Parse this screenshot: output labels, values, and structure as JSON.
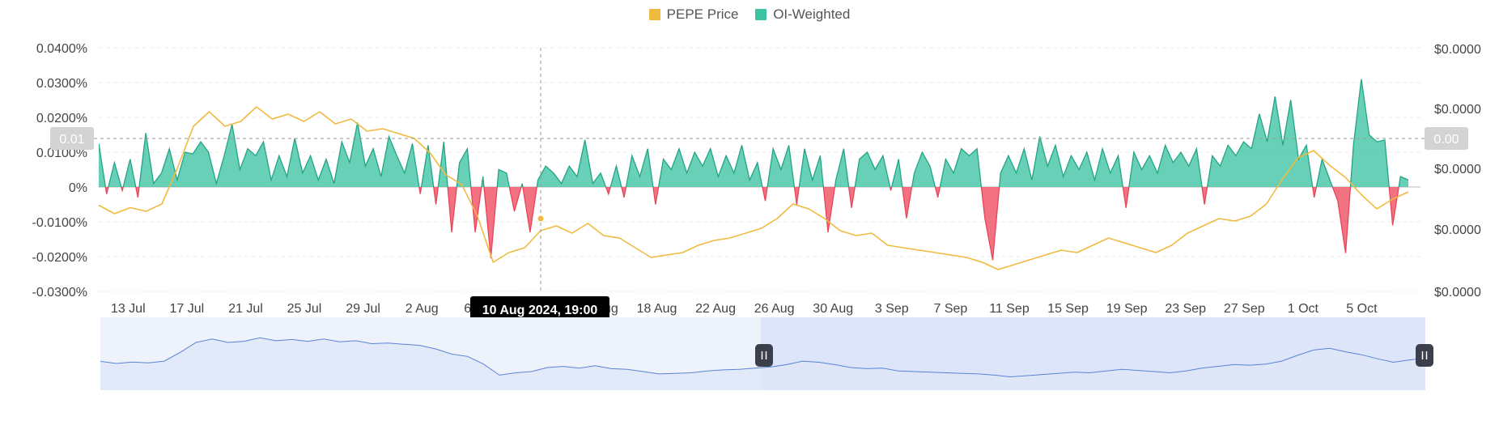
{
  "legend": {
    "price_label": "PEPE Price",
    "oi_label": "OI-Weighted"
  },
  "colors": {
    "price": "#F0BA40",
    "oi_positive": "#3CC3A3",
    "oi_negative": "#F0596B",
    "crosshair": "#9a9a9a",
    "navigator_line": "#5b84d6",
    "navigator_fill": "#dfe6f7",
    "navigator_selected": "#c7d4f5"
  },
  "crosshair": {
    "tooltip": "10 Aug 2024, 19:00",
    "left_axis_badge": "0.01",
    "right_axis_badge": "0.00"
  },
  "chart_data": {
    "type": "area",
    "x_ticks": [
      "13 Jul",
      "17 Jul",
      "21 Jul",
      "25 Jul",
      "29 Jul",
      "2 Aug",
      "6 Aug",
      "10 Aug",
      "14 Aug",
      "18 Aug",
      "22 Aug",
      "26 Aug",
      "30 Aug",
      "3 Sep",
      "7 Sep",
      "11 Sep",
      "15 Sep",
      "19 Sep",
      "23 Sep",
      "27 Sep",
      "1 Oct",
      "5 Oct"
    ],
    "y_left": {
      "ticks": [
        "0.0400%",
        "0.0300%",
        "0.0200%",
        "0.0100%",
        "0%",
        "-0.0100%",
        "-0.0200%",
        "-0.0300%"
      ],
      "range": [
        -0.03,
        0.04
      ],
      "unit": "%"
    },
    "y_right": {
      "ticks": [
        "$0.0000",
        "$0.0000",
        "$0.0000",
        "$0.0000",
        "$0.0000"
      ]
    },
    "x_range": {
      "start": "2024-07-11",
      "end": "2024-10-09"
    },
    "series": [
      {
        "name": "OI-Weighted",
        "kind": "funding_rate_area",
        "points": [
          [
            "2024-07-11",
            0.0125
          ],
          [
            "2024-07-11T12:00",
            -0.002
          ],
          [
            "2024-07-12",
            0.007
          ],
          [
            "2024-07-12T12:00",
            -0.001
          ],
          [
            "2024-07-13",
            0.008
          ],
          [
            "2024-07-13T12:00",
            -0.003
          ],
          [
            "2024-07-14",
            0.0155
          ],
          [
            "2024-07-14T12:00",
            0.001
          ],
          [
            "2024-07-15",
            0.004
          ],
          [
            "2024-07-15T12:00",
            0.011
          ],
          [
            "2024-07-16",
            0.002
          ],
          [
            "2024-07-16T12:00",
            0.01
          ],
          [
            "2024-07-17",
            0.0095
          ],
          [
            "2024-07-18",
            0.013
          ],
          [
            "2024-07-18T12:00",
            0.01
          ],
          [
            "2024-07-19",
            0.001
          ],
          [
            "2024-07-19T12:00",
            0.009
          ],
          [
            "2024-07-20",
            0.018
          ],
          [
            "2024-07-20T12:00",
            0.005
          ],
          [
            "2024-07-21",
            0.011
          ],
          [
            "2024-07-21T12:00",
            0.009
          ],
          [
            "2024-07-22",
            0.013
          ],
          [
            "2024-07-22T12:00",
            0.002
          ],
          [
            "2024-07-23",
            0.009
          ],
          [
            "2024-07-23T12:00",
            0.003
          ],
          [
            "2024-07-24",
            0.014
          ],
          [
            "2024-07-24T12:00",
            0.004
          ],
          [
            "2024-07-25",
            0.009
          ],
          [
            "2024-07-25T12:00",
            0.002
          ],
          [
            "2024-07-26",
            0.008
          ],
          [
            "2024-07-26T12:00",
            0.001
          ],
          [
            "2024-07-27",
            0.013
          ],
          [
            "2024-07-27T12:00",
            0.007
          ],
          [
            "2024-07-28",
            0.0185
          ],
          [
            "2024-07-28T12:00",
            0.006
          ],
          [
            "2024-07-29",
            0.011
          ],
          [
            "2024-07-29T12:00",
            0.003
          ],
          [
            "2024-07-30",
            0.0145
          ],
          [
            "2024-07-30T12:00",
            0.009
          ],
          [
            "2024-07-31",
            0.004
          ],
          [
            "2024-07-31T12:00",
            0.0125
          ],
          [
            "2024-08-01",
            -0.002
          ],
          [
            "2024-08-01T12:00",
            0.012
          ],
          [
            "2024-08-02",
            -0.005
          ],
          [
            "2024-08-02T12:00",
            0.013
          ],
          [
            "2024-08-02T18:00",
            -0.013
          ],
          [
            "2024-08-03",
            0.007
          ],
          [
            "2024-08-03T12:00",
            0.011
          ],
          [
            "2024-08-04",
            -0.013
          ],
          [
            "2024-08-04T12:00",
            0.003
          ],
          [
            "2024-08-05",
            -0.0205
          ],
          [
            "2024-08-05T12:00",
            0.005
          ],
          [
            "2024-08-06",
            0.004
          ],
          [
            "2024-08-06T12:00",
            -0.007
          ],
          [
            "2024-08-07",
            0.001
          ],
          [
            "2024-08-07T12:00",
            -0.013
          ],
          [
            "2024-08-08",
            0.002
          ],
          [
            "2024-08-08T12:00",
            0.006
          ],
          [
            "2024-08-09",
            0.004
          ],
          [
            "2024-08-09T12:00",
            0.001
          ],
          [
            "2024-08-10",
            0.006
          ],
          [
            "2024-08-10T12:00",
            0.003
          ],
          [
            "2024-08-11",
            0.0135
          ],
          [
            "2024-08-11T12:00",
            0.001
          ],
          [
            "2024-08-12",
            0.004
          ],
          [
            "2024-08-12T12:00",
            -0.002
          ],
          [
            "2024-08-13",
            0.006
          ],
          [
            "2024-08-13T12:00",
            -0.003
          ],
          [
            "2024-08-14",
            0.009
          ],
          [
            "2024-08-14T12:00",
            0.003
          ],
          [
            "2024-08-15",
            0.011
          ],
          [
            "2024-08-15T12:00",
            -0.005
          ],
          [
            "2024-08-16",
            0.008
          ],
          [
            "2024-08-16T12:00",
            0.005
          ],
          [
            "2024-08-17",
            0.011
          ],
          [
            "2024-08-17T12:00",
            0.004
          ],
          [
            "2024-08-18",
            0.01
          ],
          [
            "2024-08-18T12:00",
            0.006
          ],
          [
            "2024-08-19",
            0.011
          ],
          [
            "2024-08-19T12:00",
            0.003
          ],
          [
            "2024-08-20",
            0.009
          ],
          [
            "2024-08-20T12:00",
            0.004
          ],
          [
            "2024-08-21",
            0.012
          ],
          [
            "2024-08-21T12:00",
            0.002
          ],
          [
            "2024-08-22",
            0.007
          ],
          [
            "2024-08-22T12:00",
            -0.004
          ],
          [
            "2024-08-23",
            0.011
          ],
          [
            "2024-08-23T12:00",
            0.005
          ],
          [
            "2024-08-24",
            0.012
          ],
          [
            "2024-08-24T12:00",
            -0.005
          ],
          [
            "2024-08-25",
            0.011
          ],
          [
            "2024-08-25T12:00",
            0.002
          ],
          [
            "2024-08-26",
            0.009
          ],
          [
            "2024-08-26T12:00",
            -0.013
          ],
          [
            "2024-08-27",
            0.002
          ],
          [
            "2024-08-27T12:00",
            0.011
          ],
          [
            "2024-08-28",
            -0.006
          ],
          [
            "2024-08-28T12:00",
            0.008
          ],
          [
            "2024-08-29",
            0.01
          ],
          [
            "2024-08-29T12:00",
            0.005
          ],
          [
            "2024-08-30",
            0.009
          ],
          [
            "2024-08-30T12:00",
            -0.001
          ],
          [
            "2024-08-31",
            0.008
          ],
          [
            "2024-08-31T12:00",
            -0.009
          ],
          [
            "2024-09-01",
            0.004
          ],
          [
            "2024-09-01T12:00",
            0.01
          ],
          [
            "2024-09-02",
            0.006
          ],
          [
            "2024-09-02T12:00",
            -0.003
          ],
          [
            "2024-09-03",
            0.008
          ],
          [
            "2024-09-03T12:00",
            0.004
          ],
          [
            "2024-09-04",
            0.011
          ],
          [
            "2024-09-04T12:00",
            0.009
          ],
          [
            "2024-09-05",
            0.011
          ],
          [
            "2024-09-05T12:00",
            -0.009
          ],
          [
            "2024-09-06",
            -0.021
          ],
          [
            "2024-09-06T12:00",
            0.004
          ],
          [
            "2024-09-07",
            0.009
          ],
          [
            "2024-09-07T12:00",
            0.004
          ],
          [
            "2024-09-08",
            0.011
          ],
          [
            "2024-09-08T12:00",
            0.002
          ],
          [
            "2024-09-09",
            0.0145
          ],
          [
            "2024-09-09T12:00",
            0.006
          ],
          [
            "2024-09-10",
            0.012
          ],
          [
            "2024-09-10T12:00",
            0.003
          ],
          [
            "2024-09-11",
            0.009
          ],
          [
            "2024-09-11T12:00",
            0.005
          ],
          [
            "2024-09-12",
            0.01
          ],
          [
            "2024-09-12T12:00",
            0.002
          ],
          [
            "2024-09-13",
            0.011
          ],
          [
            "2024-09-13T12:00",
            0.004
          ],
          [
            "2024-09-14",
            0.009
          ],
          [
            "2024-09-14T12:00",
            -0.006
          ],
          [
            "2024-09-15",
            0.01
          ],
          [
            "2024-09-15T12:00",
            0.005
          ],
          [
            "2024-09-16",
            0.009
          ],
          [
            "2024-09-16T12:00",
            0.004
          ],
          [
            "2024-09-17",
            0.012
          ],
          [
            "2024-09-17T12:00",
            0.007
          ],
          [
            "2024-09-18",
            0.01
          ],
          [
            "2024-09-18T12:00",
            0.006
          ],
          [
            "2024-09-19",
            0.011
          ],
          [
            "2024-09-19T12:00",
            -0.005
          ],
          [
            "2024-09-20",
            0.009
          ],
          [
            "2024-09-20T12:00",
            0.006
          ],
          [
            "2024-09-21",
            0.012
          ],
          [
            "2024-09-21T12:00",
            0.009
          ],
          [
            "2024-09-22",
            0.013
          ],
          [
            "2024-09-22T12:00",
            0.011
          ],
          [
            "2024-09-23",
            0.021
          ],
          [
            "2024-09-23T12:00",
            0.013
          ],
          [
            "2024-09-24",
            0.026
          ],
          [
            "2024-09-24T12:00",
            0.012
          ],
          [
            "2024-09-25",
            0.025
          ],
          [
            "2024-09-25T12:00",
            0.008
          ],
          [
            "2024-09-26",
            0.012
          ],
          [
            "2024-09-26T12:00",
            -0.003
          ],
          [
            "2024-09-27",
            0.008
          ],
          [
            "2024-09-27T12:00",
            0.002
          ],
          [
            "2024-09-28",
            -0.004
          ],
          [
            "2024-09-28T12:00",
            -0.019
          ],
          [
            "2024-09-29",
            0.012
          ],
          [
            "2024-09-29T12:00",
            0.031
          ],
          [
            "2024-09-30",
            0.015
          ],
          [
            "2024-09-30T12:00",
            0.013
          ],
          [
            "2024-10-01",
            0.0135
          ],
          [
            "2024-10-01T12:00",
            -0.011
          ],
          [
            "2024-10-02",
            0.003
          ],
          [
            "2024-10-02T12:00",
            0.002
          ]
        ]
      },
      {
        "name": "PEPE Price",
        "kind": "price_line",
        "note_scale": "relative 0-1 of right axis",
        "points": [
          [
            "2024-07-11",
            0.355
          ],
          [
            "2024-07-12",
            0.32
          ],
          [
            "2024-07-13",
            0.345
          ],
          [
            "2024-07-14",
            0.33
          ],
          [
            "2024-07-15",
            0.36
          ],
          [
            "2024-07-16",
            0.51
          ],
          [
            "2024-07-17",
            0.68
          ],
          [
            "2024-07-18",
            0.74
          ],
          [
            "2024-07-19",
            0.68
          ],
          [
            "2024-07-20",
            0.7
          ],
          [
            "2024-07-21",
            0.76
          ],
          [
            "2024-07-22",
            0.71
          ],
          [
            "2024-07-23",
            0.73
          ],
          [
            "2024-07-24",
            0.7
          ],
          [
            "2024-07-25",
            0.74
          ],
          [
            "2024-07-26",
            0.69
          ],
          [
            "2024-07-27",
            0.71
          ],
          [
            "2024-07-28",
            0.66
          ],
          [
            "2024-07-29",
            0.67
          ],
          [
            "2024-07-30",
            0.65
          ],
          [
            "2024-07-31",
            0.63
          ],
          [
            "2024-08-01",
            0.57
          ],
          [
            "2024-08-02",
            0.48
          ],
          [
            "2024-08-03",
            0.44
          ],
          [
            "2024-08-04",
            0.31
          ],
          [
            "2024-08-05",
            0.12
          ],
          [
            "2024-08-06",
            0.16
          ],
          [
            "2024-08-07",
            0.18
          ],
          [
            "2024-08-08",
            0.25
          ],
          [
            "2024-08-09",
            0.27
          ],
          [
            "2024-08-10",
            0.24
          ],
          [
            "2024-08-11",
            0.28
          ],
          [
            "2024-08-12",
            0.23
          ],
          [
            "2024-08-13",
            0.22
          ],
          [
            "2024-08-14",
            0.18
          ],
          [
            "2024-08-15",
            0.14
          ],
          [
            "2024-08-16",
            0.15
          ],
          [
            "2024-08-17",
            0.16
          ],
          [
            "2024-08-18",
            0.19
          ],
          [
            "2024-08-19",
            0.21
          ],
          [
            "2024-08-20",
            0.22
          ],
          [
            "2024-08-21",
            0.24
          ],
          [
            "2024-08-22",
            0.26
          ],
          [
            "2024-08-23",
            0.3
          ],
          [
            "2024-08-24",
            0.36
          ],
          [
            "2024-08-25",
            0.34
          ],
          [
            "2024-08-26",
            0.3
          ],
          [
            "2024-08-27",
            0.25
          ],
          [
            "2024-08-28",
            0.23
          ],
          [
            "2024-08-29",
            0.24
          ],
          [
            "2024-08-30",
            0.19
          ],
          [
            "2024-08-31",
            0.18
          ],
          [
            "2024-09-01",
            0.17
          ],
          [
            "2024-09-02",
            0.16
          ],
          [
            "2024-09-03",
            0.15
          ],
          [
            "2024-09-04",
            0.14
          ],
          [
            "2024-09-05",
            0.12
          ],
          [
            "2024-09-06",
            0.09
          ],
          [
            "2024-09-07",
            0.11
          ],
          [
            "2024-09-08",
            0.13
          ],
          [
            "2024-09-09",
            0.15
          ],
          [
            "2024-09-10",
            0.17
          ],
          [
            "2024-09-11",
            0.16
          ],
          [
            "2024-09-12",
            0.19
          ],
          [
            "2024-09-13",
            0.22
          ],
          [
            "2024-09-14",
            0.2
          ],
          [
            "2024-09-15",
            0.18
          ],
          [
            "2024-09-16",
            0.16
          ],
          [
            "2024-09-17",
            0.19
          ],
          [
            "2024-09-18",
            0.24
          ],
          [
            "2024-09-19",
            0.27
          ],
          [
            "2024-09-20",
            0.3
          ],
          [
            "2024-09-21",
            0.29
          ],
          [
            "2024-09-22",
            0.31
          ],
          [
            "2024-09-23",
            0.36
          ],
          [
            "2024-09-24",
            0.46
          ],
          [
            "2024-09-25",
            0.55
          ],
          [
            "2024-09-26",
            0.58
          ],
          [
            "2024-09-27",
            0.52
          ],
          [
            "2024-09-28",
            0.47
          ],
          [
            "2024-09-29",
            0.4
          ],
          [
            "2024-09-30",
            0.34
          ],
          [
            "2024-10-01",
            0.38
          ],
          [
            "2024-10-02",
            0.41
          ]
        ]
      }
    ],
    "grid": true,
    "legend_position": "top-center"
  }
}
